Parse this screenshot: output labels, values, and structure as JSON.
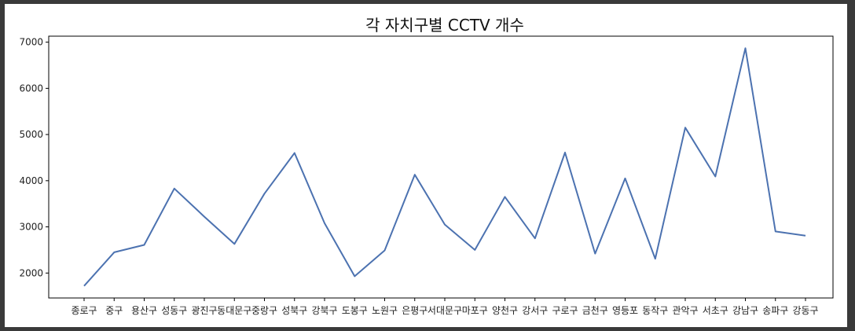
{
  "chart_data": {
    "type": "line",
    "title": "각 자치구별 CCTV 개수",
    "xlabel": "",
    "ylabel": "",
    "categories": [
      "종로구",
      "중구",
      "용산구",
      "성동구",
      "광진구",
      "동대문구",
      "중랑구",
      "성북구",
      "강북구",
      "도봉구",
      "노원구",
      "은평구",
      "서대문구",
      "마포구",
      "양천구",
      "강서구",
      "구로구",
      "금천구",
      "영등포",
      "동작구",
      "관악구",
      "서초구",
      "강남구",
      "송파구",
      "강동구"
    ],
    "series": [
      {
        "values": [
          1720,
          2450,
          2610,
          3830,
          3220,
          2630,
          3720,
          4600,
          3080,
          1930,
          2490,
          4130,
          3050,
          2500,
          3650,
          2750,
          4610,
          2420,
          4050,
          2310,
          5150,
          4090,
          6870,
          2900,
          2810
        ],
        "color": "#4c72b0"
      }
    ],
    "yticks": [
      2000,
      3000,
      4000,
      5000,
      6000,
      7000
    ],
    "ylim": [
      1460,
      7130
    ],
    "grid": false
  }
}
